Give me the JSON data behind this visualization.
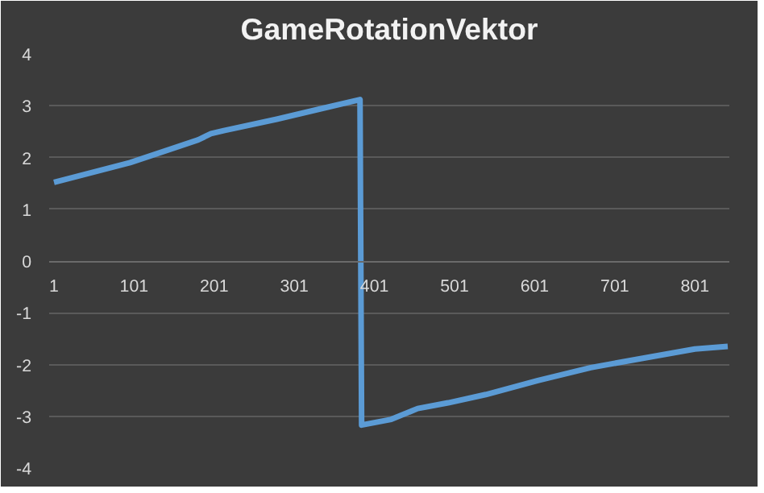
{
  "chart_data": {
    "type": "line",
    "title": "GameRotationVektor",
    "series": [
      {
        "color": "#5b9bd5",
        "x": [
          1,
          96,
          148,
          181,
          197,
          213,
          279,
          331,
          383,
          385,
          422,
          455,
          493,
          540,
          605,
          671,
          736,
          801,
          842
        ],
        "values": [
          1.52,
          1.9,
          2.17,
          2.34,
          2.46,
          2.52,
          2.74,
          2.93,
          3.12,
          -3.17,
          -3.06,
          -2.85,
          -2.74,
          -2.58,
          -2.31,
          -2.06,
          -1.88,
          -1.7,
          -1.65
        ]
      }
    ],
    "xlim": [
      -5,
      844
    ],
    "xticks": [
      1,
      101,
      201,
      301,
      401,
      501,
      601,
      701,
      801
    ],
    "ylim": [
      -4,
      4
    ],
    "yticks": [
      -4,
      -3,
      -2,
      -1,
      0,
      1,
      2,
      3,
      4
    ],
    "grid": "y",
    "marker": "none",
    "line_style": "solid"
  }
}
